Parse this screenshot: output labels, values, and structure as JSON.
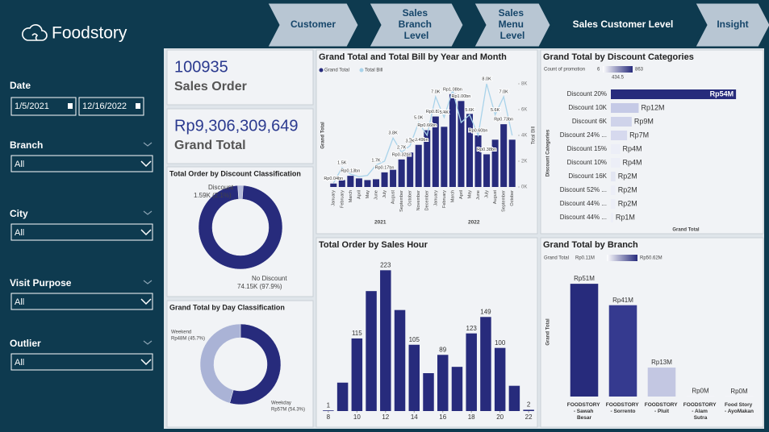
{
  "nav": {
    "logo": "Foodstory",
    "tabs": [
      "Customer",
      "Sales Branch Level",
      "Sales Menu Level",
      "Sales Customer Level",
      "Insight"
    ],
    "active_tab": 3
  },
  "filters": [
    {
      "label": "Date",
      "values": [
        "1/5/2021",
        "12/16/2022"
      ]
    },
    {
      "label": "Branch",
      "values": [
        "All"
      ]
    },
    {
      "label": "City",
      "values": [
        "All"
      ]
    },
    {
      "label": "Visit Purpose",
      "values": [
        "All"
      ]
    },
    {
      "label": "Outlier",
      "values": [
        "All"
      ]
    }
  ],
  "kpis": [
    {
      "value": "100935",
      "label": "Sales Order"
    },
    {
      "value": "Rp9,306,309,649",
      "label": "Grand Total"
    }
  ],
  "chart_data": [
    {
      "type": "donut",
      "title": "Total Order by Discount Classification",
      "categories": [
        "Discount",
        "No Discount"
      ],
      "values": [
        1.59,
        74.15
      ],
      "value_labels": [
        "1.59K (2.1%)",
        "74.15K (97.9%)"
      ],
      "colors": [
        "#b3b9da",
        "#272b7c"
      ]
    },
    {
      "type": "donut",
      "title": "Grand Total by Day Classification",
      "categories": [
        "Weekend",
        "Weekday"
      ],
      "values": [
        45.7,
        54.3
      ],
      "value_labels": [
        "Rp48M (45.7%)",
        "Rp57M (54.3%)"
      ],
      "colors": [
        "#aab3d6",
        "#272b7c"
      ]
    },
    {
      "type": "combo",
      "title": "Grand Total and Total Bill by Year and Month",
      "categories": [
        "January",
        "February",
        "March",
        "April",
        "May",
        "June",
        "July",
        "August",
        "September",
        "October",
        "November",
        "December",
        "January",
        "February",
        "March",
        "April",
        "May",
        "June",
        "July",
        "August",
        "September",
        "October"
      ],
      "year_labels": [
        "2021",
        "2022"
      ],
      "y_label": "Grand Total",
      "y2_label": "Total Bill",
      "ylim": [
        0,
        1.2
      ],
      "y2lim": [
        0,
        8
      ],
      "y2ticks": [
        {
          "value": 0,
          "label": "0K"
        },
        {
          "value": 2,
          "label": "2K"
        },
        {
          "value": 4,
          "label": "4K"
        },
        {
          "value": 6,
          "label": "6K"
        },
        {
          "value": 8,
          "label": "8K"
        }
      ],
      "series": [
        {
          "name": "Grand Total",
          "color": "#272b7c",
          "values": [
            0.04,
            0.08,
            0.13,
            0.1,
            0.08,
            0.09,
            0.17,
            0.2,
            0.32,
            0.4,
            0.49,
            0.66,
            0.82,
            0.7,
            1.08,
            1.0,
            0.85,
            0.6,
            0.38,
            0.55,
            0.73,
            0.55
          ],
          "value_labels": [
            "Rp0.04bn",
            null,
            "Rp0.13bn",
            null,
            null,
            null,
            "Rp0.17bn",
            null,
            "Rp0.32bn",
            null,
            "Rp0.49bn",
            "Rp0.66bn",
            "Rp0.82bn",
            null,
            "Rp1.08bn",
            "Rp1.00bn",
            null,
            "Rp0.60bn",
            "Rp0.38bn",
            null,
            "Rp0.73bn",
            null
          ]
        },
        {
          "name": "Total Bill",
          "color": "#a9d3ea",
          "axis": "y2",
          "values": [
            0.3,
            1.5,
            1.0,
            0.8,
            0.9,
            1.7,
            2.0,
            3.8,
            2.7,
            3.2,
            5.0,
            4.0,
            7.0,
            5.4,
            7.5,
            5.0,
            5.6,
            4.0,
            8.0,
            5.6,
            7.0,
            4.0
          ],
          "value_labels": [
            null,
            "1.5K",
            null,
            null,
            null,
            "1.7K",
            null,
            "3.8K",
            "2.7K",
            "3.2K",
            "5.0K",
            null,
            "7.0K",
            "5.4K",
            null,
            null,
            "5.6K",
            null,
            "8.0K",
            "5.6K",
            "7.0K",
            null
          ]
        }
      ]
    },
    {
      "type": "hbar",
      "title": "Grand Total by Discount Categories",
      "legend": {
        "title": "Count of promotion",
        "min": 6,
        "mid": 434.5,
        "max": 863
      },
      "y_label": "Discount Categories",
      "x_label": "Grand Total",
      "categories": [
        "Discount 20%",
        "Discount 10K",
        "Discount 6K",
        "Discount 24% ...",
        "Discount 15%",
        "Discount 10%",
        "Discount 16K",
        "Discount 52% ...",
        "Discount 44% ...",
        "Discount 44% ..."
      ],
      "values": [
        54,
        12,
        9,
        7,
        4,
        4,
        2,
        2,
        2,
        1
      ],
      "value_labels": [
        "Rp54M",
        "Rp12M",
        "Rp9M",
        "Rp7M",
        "Rp4M",
        "Rp4M",
        "Rp2M",
        "Rp2M",
        "Rp2M",
        "Rp1M"
      ],
      "colors": [
        "#272b7c",
        "#c5cae6",
        "#cfd3ea",
        "#d6d9ee",
        "#eceef7",
        "#eceef7",
        "#e3e6f2",
        "#eceef7",
        "#eceef7",
        "#eceef7"
      ],
      "xlim": [
        0,
        55
      ]
    },
    {
      "type": "bar",
      "title": "Total Order by Sales Hour",
      "x": [
        8,
        9,
        10,
        11,
        12,
        13,
        14,
        15,
        16,
        17,
        18,
        19,
        20,
        21,
        22
      ],
      "values": [
        1,
        45,
        115,
        190,
        223,
        160,
        105,
        60,
        89,
        70,
        123,
        149,
        100,
        40,
        2
      ],
      "value_labels": [
        "1",
        null,
        "115",
        null,
        "223",
        null,
        "105",
        null,
        "89",
        null,
        "123",
        "149",
        "100",
        null,
        "2"
      ],
      "color": "#272b7c",
      "xlim": [
        7.5,
        22.5
      ],
      "xticks": [
        8,
        10,
        12,
        14,
        16,
        18,
        20,
        22
      ],
      "ylim": [
        0,
        240
      ]
    },
    {
      "type": "bar",
      "title": "Grand Total by Branch",
      "legend": {
        "title": "Grand Total",
        "labels": [
          "Rp0.11M",
          "Rp50.62M"
        ]
      },
      "y_label": "Grand Total",
      "categories": [
        "FOODSTORY - Sawah Besar",
        "FOODSTORY - Sorrento",
        "FOODSTORY - Pluit",
        "FOODSTORY - Alam Sutra",
        "Food Story - AyoMakan"
      ],
      "values": [
        50.62,
        41,
        13,
        0.3,
        0.11
      ],
      "value_labels": [
        "Rp51M",
        "Rp41M",
        "Rp13M",
        "Rp0M",
        "Rp0M"
      ],
      "colors": [
        "#272b7c",
        "#353a8f",
        "#c3c7e2",
        "#f4f5fa",
        "#f7f8fb"
      ],
      "ylim": [
        0,
        55
      ]
    }
  ]
}
